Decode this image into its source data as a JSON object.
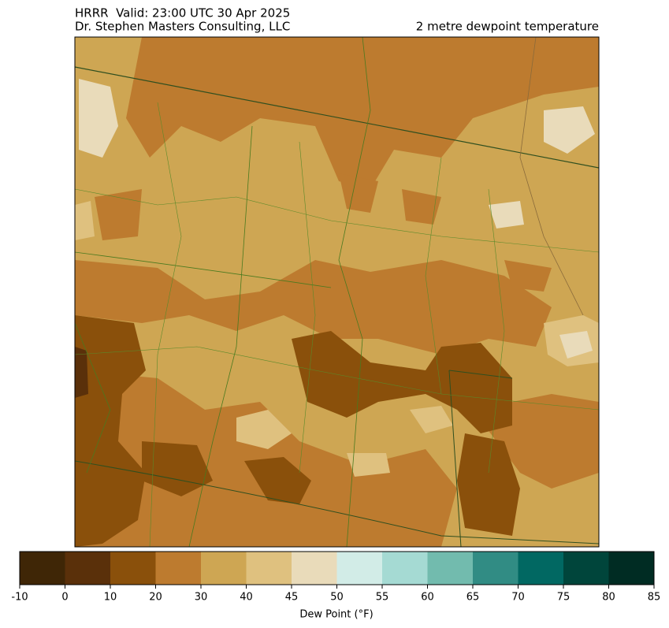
{
  "header": {
    "title_left": "HRRR  Valid: 23:00 UTC 30 Apr 2025",
    "subtitle_left": "Dr. Stephen Masters Consulting, LLC",
    "title_right": "2 metre dewpoint temperature"
  },
  "colorbar": {
    "label": "Dew Point (°F)",
    "ticks": [
      -10,
      0,
      10,
      20,
      30,
      40,
      45,
      50,
      55,
      60,
      65,
      70,
      75,
      80,
      85
    ],
    "colors": [
      "#3f2606",
      "#5a300a",
      "#8a500b",
      "#bd7b2f",
      "#cea653",
      "#dfc17f",
      "#e9dbba",
      "#d2ece7",
      "#a5dad3",
      "#72bbae",
      "#318c84",
      "#016862",
      "#00453b",
      "#002c23"
    ]
  }
}
